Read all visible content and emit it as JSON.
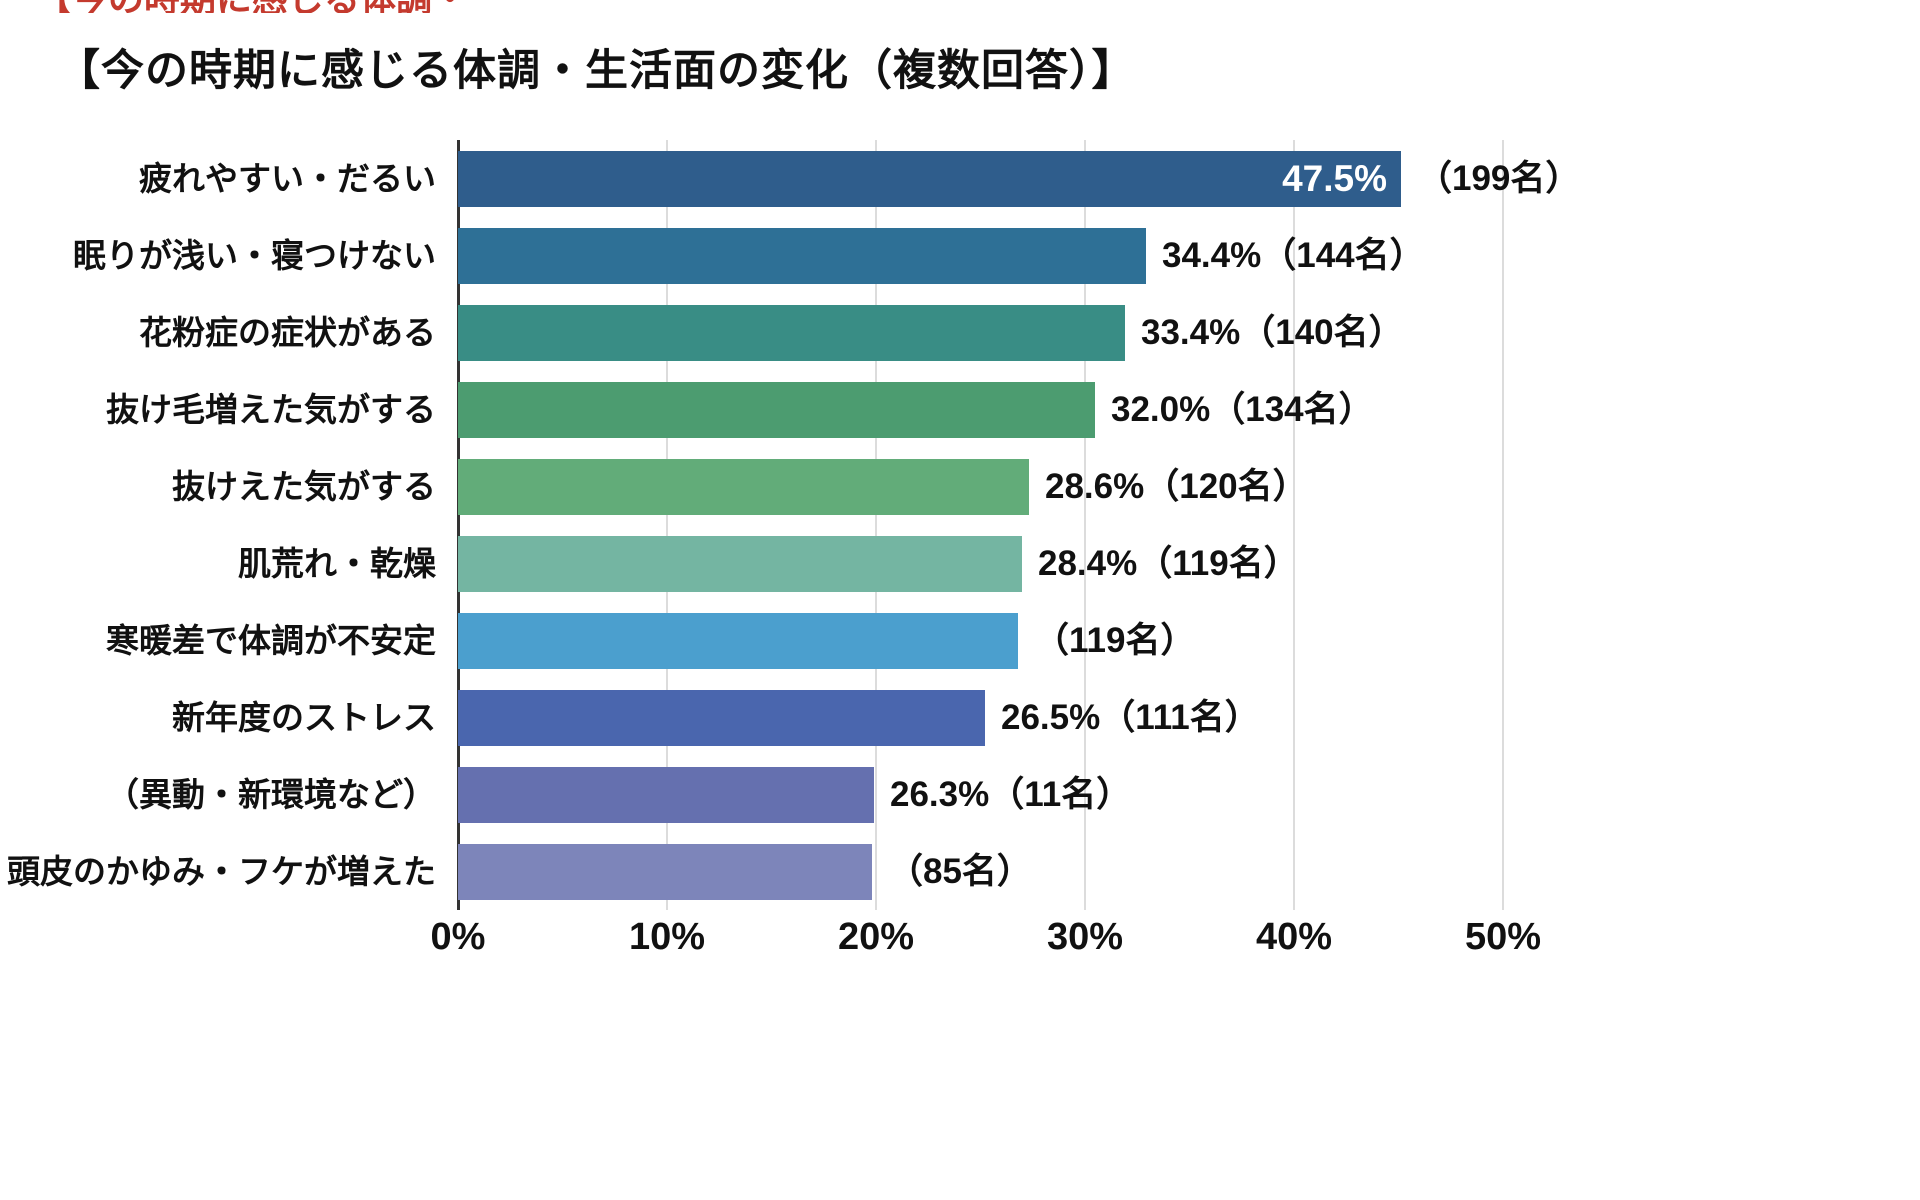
{
  "page": {
    "clipped_top_text": "【今の時期に感じる体調・生活面の変化"
  },
  "chart_data": {
    "type": "bar",
    "orientation": "horizontal",
    "title": "【今の時期に感じる体調・生活面の変化（複数回答）】",
    "categories": [
      "疲れやすい・だるい",
      "眠りが浅い・寝つけない",
      "花粉症の症状がある",
      "抜け毛増えた気がする",
      "抜けえた気がする",
      "肌荒れ・乾燥",
      "寒暖差で体調が不安定",
      "新年度のストレス",
      "（異動・新環境など）",
      "頭皮のかゆみ・フケが増えた"
    ],
    "values_pct": [
      47.5,
      34.4,
      33.4,
      32.0,
      28.6,
      28.4,
      null,
      26.5,
      26.3,
      null
    ],
    "counts": [
      199,
      144,
      140,
      134,
      120,
      119,
      119,
      111,
      11,
      85
    ],
    "pct_labels": [
      "47.5%",
      "34.4%",
      "33.4%",
      "32.0%",
      "28.6%",
      "28.4%",
      "",
      "26.5%",
      "26.3%",
      ""
    ],
    "count_labels": [
      "（199名）",
      "（144名）",
      "（140名）",
      "（134名）",
      "（120名）",
      "（119名）",
      "（119名）",
      "（111名）",
      "（11名）",
      "（85名）"
    ],
    "bar_pct_drawn": [
      45.1,
      32.9,
      31.9,
      30.5,
      27.3,
      27.0,
      26.8,
      25.2,
      19.9,
      19.8
    ],
    "colors": [
      "#2F5D8C",
      "#2E7096",
      "#398D85",
      "#4C9C70",
      "#62AC79",
      "#74B5A2",
      "#4B9FCE",
      "#4A66AE",
      "#6570AF",
      "#7D85BA"
    ],
    "xlim": [
      0,
      50
    ],
    "x_ticks": [
      "0%",
      "10%",
      "20%",
      "30%",
      "40%",
      "50%"
    ],
    "grid": true,
    "legend": false
  }
}
